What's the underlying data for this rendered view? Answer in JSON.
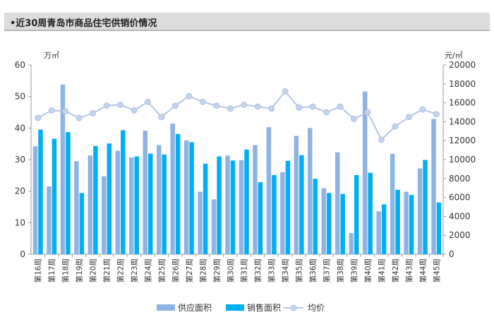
{
  "header": {
    "title": "•近30周青岛市商品住宅供销价情况"
  },
  "chart_data": {
    "type": "bar",
    "title": "•近30周青岛市商品住宅供销价情况",
    "categories": [
      "第16周",
      "第17周",
      "第18周",
      "第19周",
      "第20周",
      "第21周",
      "第22周",
      "第23周",
      "第24周",
      "第25周",
      "第26周",
      "第27周",
      "第28周",
      "第29周",
      "第30周",
      "第31周",
      "第32周",
      "第33周",
      "第34周",
      "第35周",
      "第36周",
      "第37周",
      "第38周",
      "第39周",
      "第40周",
      "第41周",
      "第42周",
      "第43周",
      "第44周",
      "第45周"
    ],
    "y_left": {
      "unit": "万㎡",
      "min": 0,
      "max": 60,
      "ticks": [
        0,
        10,
        20,
        30,
        40,
        50,
        60
      ]
    },
    "y_right": {
      "unit": "元/㎡",
      "min": 0,
      "max": 20000,
      "ticks": [
        0,
        2000,
        4000,
        6000,
        8000,
        10000,
        12000,
        14000,
        16000,
        18000,
        20000
      ]
    },
    "series": [
      {
        "name": "供应面积",
        "type": "bar",
        "axis": "left",
        "color": "#8eb4e3",
        "values": [
          34.2,
          21.5,
          53.8,
          29.5,
          31.3,
          24.7,
          32.8,
          30.7,
          39.2,
          34.6,
          41.4,
          36.1,
          19.8,
          17.4,
          31.3,
          29.8,
          34.6,
          40.3,
          26.0,
          37.5,
          40.0,
          20.9,
          32.3,
          6.7,
          51.6,
          13.6,
          31.8,
          19.8,
          27.2,
          42.9
        ]
      },
      {
        "name": "销售面积",
        "type": "bar",
        "axis": "left",
        "color": "#00b0f0",
        "values": [
          39.5,
          36.6,
          38.7,
          19.4,
          34.3,
          35.1,
          39.3,
          31.0,
          31.9,
          31.6,
          38.1,
          35.5,
          28.7,
          31.0,
          29.7,
          33.2,
          22.8,
          25.1,
          29.6,
          31.4,
          23.9,
          19.4,
          19.1,
          25.1,
          25.8,
          15.8,
          20.4,
          18.8,
          29.9,
          16.4
        ]
      },
      {
        "name": "均价",
        "type": "line",
        "axis": "right",
        "color": "#b4c7e7",
        "values": [
          14400,
          15200,
          15100,
          14400,
          14900,
          15700,
          15800,
          15200,
          16100,
          14500,
          15700,
          16700,
          16100,
          15700,
          15400,
          15800,
          15600,
          15400,
          17200,
          15500,
          15600,
          15000,
          15600,
          14300,
          15000,
          12100,
          13500,
          14500,
          15300,
          14800
        ]
      }
    ],
    "legend_position": "bottom",
    "grid": false
  }
}
